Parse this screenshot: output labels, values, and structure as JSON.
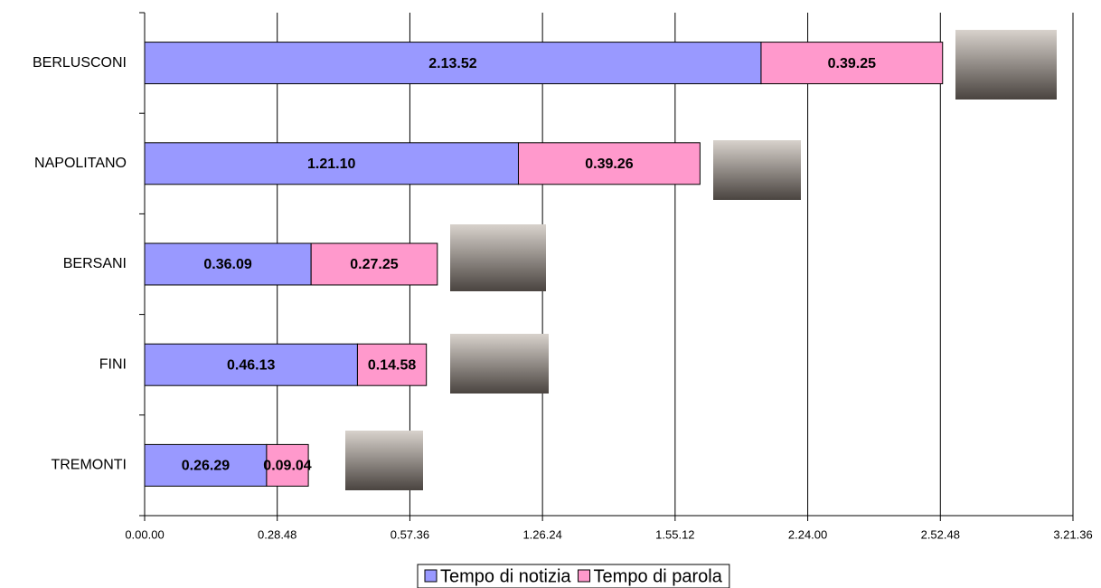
{
  "chart_data": {
    "type": "stacked-bar-horizontal",
    "categories": [
      "BERLUSCONI",
      "NAPOLITANO",
      "BERSANI",
      "FINI",
      "TREMONTI"
    ],
    "series": [
      {
        "name": "Tempo di notizia",
        "color": "#9999ff",
        "values": [
          8032,
          4870,
          2169,
          2773,
          1589
        ],
        "value_labels": [
          "2.13.52",
          "1.21.10",
          "0.36.09",
          "0.46.13",
          "0.26.29"
        ]
      },
      {
        "name": "Tempo di parola",
        "color": "#ff99cc",
        "values": [
          2365,
          2366,
          1645,
          898,
          544
        ],
        "value_labels": [
          "0.39.25",
          "0.39.26",
          "0.27.25",
          "0.14.58",
          "0.09.04"
        ]
      }
    ],
    "xlim": [
      0,
      12096
    ],
    "xticks": [
      {
        "value": 0,
        "label": "0.00.00"
      },
      {
        "value": 1728,
        "label": "0.28.48"
      },
      {
        "value": 3456,
        "label": "0.57.36"
      },
      {
        "value": 5184,
        "label": "1.26.24"
      },
      {
        "value": 6912,
        "label": "1.55.12"
      },
      {
        "value": 8640,
        "label": "2.24.00"
      },
      {
        "value": 10368,
        "label": "2.52.48"
      },
      {
        "value": 12096,
        "label": "3.21.36"
      }
    ],
    "grid": true,
    "legend": "bottom"
  }
}
